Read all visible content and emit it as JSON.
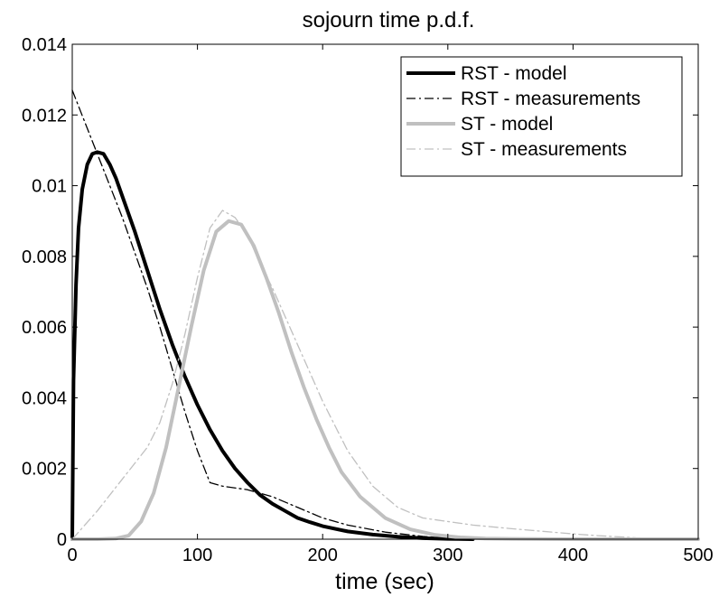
{
  "chart_data": {
    "type": "line",
    "title": "sojourn time p.d.f.",
    "xlabel": "time (sec)",
    "ylabel": "",
    "xlim": [
      0,
      500
    ],
    "ylim": [
      0,
      0.014
    ],
    "xticks": [
      0,
      100,
      200,
      300,
      400,
      500
    ],
    "yticks": [
      0,
      0.002,
      0.004,
      0.006,
      0.008,
      0.01,
      0.012,
      0.014
    ],
    "xtick_labels": [
      "0",
      "100",
      "200",
      "300",
      "400",
      "500"
    ],
    "ytick_labels": [
      "0",
      "0.002",
      "0.004",
      "0.006",
      "0.008",
      "0.01",
      "0.012",
      "0.014"
    ],
    "grid": false,
    "legend_position": "top-right",
    "series": [
      {
        "name": "RST - model",
        "style": "solid",
        "color": "#000000",
        "width": "thick",
        "x": [
          0,
          1,
          3,
          5,
          8,
          12,
          16,
          20,
          25,
          30,
          35,
          40,
          50,
          60,
          70,
          80,
          90,
          100,
          110,
          120,
          130,
          140,
          150,
          160,
          170,
          180,
          190,
          200,
          220,
          240,
          260,
          280,
          300,
          320
        ],
        "y": [
          0.0,
          0.0045,
          0.0072,
          0.0088,
          0.0099,
          0.0106,
          0.0109,
          0.01095,
          0.0109,
          0.0106,
          0.0102,
          0.0097,
          0.0087,
          0.0076,
          0.0065,
          0.0055,
          0.0046,
          0.0038,
          0.0031,
          0.0025,
          0.002,
          0.0016,
          0.00125,
          0.001,
          0.0008,
          0.0006,
          0.00048,
          0.00037,
          0.00022,
          0.00013,
          7e-05,
          3e-05,
          1e-05,
          0.0
        ]
      },
      {
        "name": "RST - measurements",
        "style": "dashdot",
        "color": "#000000",
        "width": "thin",
        "x": [
          0,
          10,
          20,
          30,
          40,
          50,
          60,
          70,
          80,
          90,
          100,
          110,
          120,
          140,
          160,
          180,
          200,
          220,
          250,
          280,
          300,
          320
        ],
        "y": [
          0.0127,
          0.0118,
          0.0109,
          0.01,
          0.0091,
          0.0081,
          0.0071,
          0.006,
          0.0048,
          0.0036,
          0.0025,
          0.0016,
          0.0015,
          0.0014,
          0.0012,
          0.0009,
          0.0006,
          0.0004,
          0.0002,
          8e-05,
          3e-05,
          0.0
        ]
      },
      {
        "name": "ST - model",
        "style": "solid",
        "color": "#c0c0c0",
        "width": "thick",
        "x": [
          0,
          20,
          35,
          45,
          55,
          65,
          75,
          85,
          95,
          105,
          115,
          125,
          135,
          145,
          155,
          165,
          175,
          185,
          195,
          205,
          215,
          230,
          250,
          270,
          290,
          310,
          330,
          350,
          400,
          450,
          500
        ],
        "y": [
          0.0,
          0.0,
          2e-05,
          0.0001,
          0.0005,
          0.0013,
          0.0026,
          0.0043,
          0.006,
          0.0076,
          0.0087,
          0.009,
          0.0089,
          0.0083,
          0.0074,
          0.0064,
          0.0053,
          0.0043,
          0.0034,
          0.0026,
          0.0019,
          0.0012,
          0.0006,
          0.00028,
          0.00012,
          5e-05,
          2e-05,
          1e-05,
          0.0,
          0.0,
          0.0
        ]
      },
      {
        "name": "ST - measurements",
        "style": "dashdot",
        "color": "#c0c0c0",
        "width": "thin",
        "x": [
          0,
          20,
          40,
          60,
          70,
          80,
          90,
          100,
          110,
          120,
          130,
          140,
          150,
          160,
          170,
          180,
          190,
          200,
          220,
          240,
          260,
          280,
          300,
          320,
          350,
          400,
          420,
          450,
          500
        ],
        "y": [
          0.0,
          0.0008,
          0.0017,
          0.0026,
          0.0033,
          0.0044,
          0.0058,
          0.0074,
          0.0088,
          0.0093,
          0.0091,
          0.0086,
          0.0078,
          0.0071,
          0.0063,
          0.0055,
          0.0047,
          0.0039,
          0.0025,
          0.0015,
          0.0009,
          0.0006,
          0.0005,
          0.0004,
          0.0003,
          0.00015,
          0.0001,
          4e-05,
          0.0
        ]
      }
    ]
  }
}
